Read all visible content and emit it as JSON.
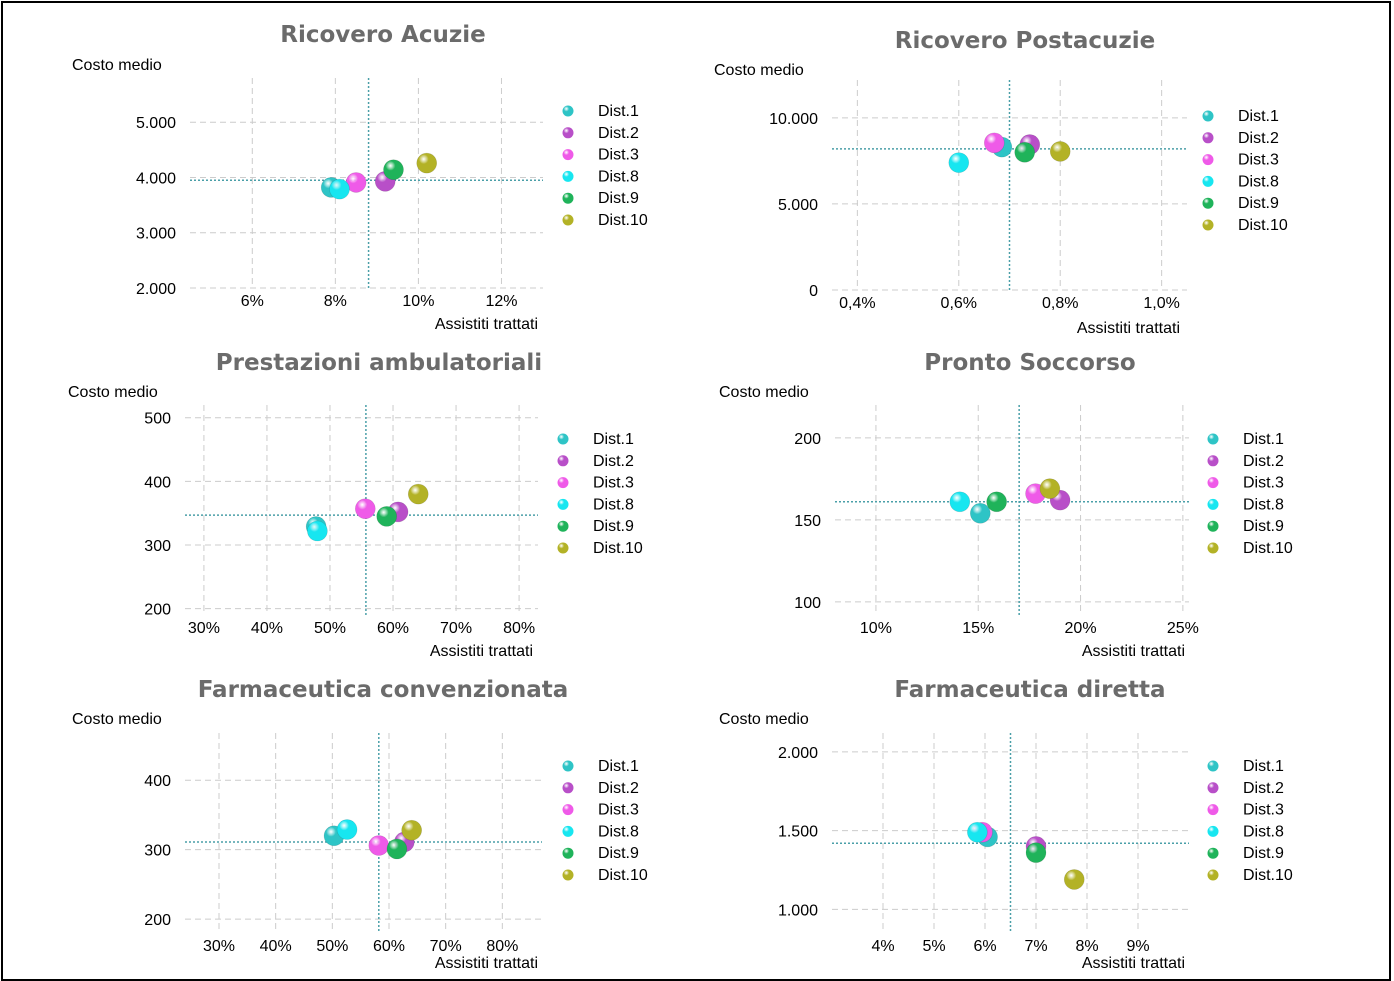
{
  "colors": {
    "Dist.1": "#2ec4c6",
    "Dist.2": "#b84fc8",
    "Dist.3": "#ef5ae8",
    "Dist.8": "#17e6f0",
    "Dist.9": "#1fb35a",
    "Dist.10": "#b3b226",
    "grid": "#cccccc",
    "ref": "#4a9fa8"
  },
  "chart_data": [
    {
      "type": "scatter",
      "title": "Ricovero Acuzie",
      "xlabel": "Assistiti trattati",
      "ylabel": "Costo medio",
      "xlim": [
        4.5,
        13.0
      ],
      "ylim": [
        2000,
        5800
      ],
      "xticks": [
        6,
        8,
        10,
        12
      ],
      "xtick_labels": [
        "6%",
        "8%",
        "10%",
        "12%"
      ],
      "yticks": [
        2000,
        3000,
        4000,
        5000
      ],
      "ytick_labels": [
        "2.000",
        "3.000",
        "4.000",
        "5.000"
      ],
      "ref_x": 8.8,
      "ref_y": 3950,
      "grid": true,
      "legend": "right",
      "points": [
        {
          "name": "Dist.1",
          "x": 7.9,
          "y": 3820
        },
        {
          "name": "Dist.2",
          "x": 9.2,
          "y": 3930
        },
        {
          "name": "Dist.3",
          "x": 8.5,
          "y": 3910
        },
        {
          "name": "Dist.8",
          "x": 8.1,
          "y": 3790
        },
        {
          "name": "Dist.9",
          "x": 9.4,
          "y": 4140
        },
        {
          "name": "Dist.10",
          "x": 10.2,
          "y": 4260
        }
      ]
    },
    {
      "type": "scatter",
      "title": "Ricovero Postacuzie",
      "xlabel": "Assistiti trattati",
      "ylabel": "Costo medio",
      "xlim": [
        0.35,
        1.05
      ],
      "ylim": [
        0,
        12200
      ],
      "xticks": [
        0.4,
        0.6,
        0.8,
        1.0
      ],
      "xtick_labels": [
        "0,4%",
        "0,6%",
        "0,8%",
        "1,0%"
      ],
      "yticks": [
        0,
        5000,
        10000
      ],
      "ytick_labels": [
        "0",
        "5.000",
        "10.000"
      ],
      "ref_x": 0.7,
      "ref_y": 8200,
      "grid": true,
      "legend": "right",
      "points": [
        {
          "name": "Dist.1",
          "x": 0.685,
          "y": 8300
        },
        {
          "name": "Dist.2",
          "x": 0.74,
          "y": 8450
        },
        {
          "name": "Dist.3",
          "x": 0.67,
          "y": 8550
        },
        {
          "name": "Dist.8",
          "x": 0.6,
          "y": 7400
        },
        {
          "name": "Dist.9",
          "x": 0.73,
          "y": 8000
        },
        {
          "name": "Dist.10",
          "x": 0.8,
          "y": 8050
        }
      ]
    },
    {
      "type": "scatter",
      "title": "Prestazioni ambulatoriali",
      "xlabel": "Assistiti trattati",
      "ylabel": "Costo medio",
      "xlim": [
        27,
        83
      ],
      "ylim": [
        190,
        520
      ],
      "xticks": [
        30,
        40,
        50,
        60,
        70,
        80
      ],
      "xtick_labels": [
        "30%",
        "40%",
        "50%",
        "60%",
        "70%",
        "80%"
      ],
      "yticks": [
        200,
        300,
        400,
        500
      ],
      "ytick_labels": [
        "200",
        "300",
        "400",
        "500"
      ],
      "ref_x": 55.7,
      "ref_y": 347,
      "grid": true,
      "legend": "right",
      "points": [
        {
          "name": "Dist.1",
          "x": 47.8,
          "y": 329
        },
        {
          "name": "Dist.2",
          "x": 60.8,
          "y": 352
        },
        {
          "name": "Dist.3",
          "x": 55.6,
          "y": 357
        },
        {
          "name": "Dist.8",
          "x": 48.0,
          "y": 322
        },
        {
          "name": "Dist.9",
          "x": 59.0,
          "y": 345
        },
        {
          "name": "Dist.10",
          "x": 64.0,
          "y": 380
        }
      ]
    },
    {
      "type": "scatter",
      "title": "Pronto Soccorso",
      "xlabel": "Assistiti trattati",
      "ylabel": "Costo medio",
      "xlim": [
        8,
        25.3
      ],
      "ylim": [
        92,
        220
      ],
      "xticks": [
        10,
        15,
        20,
        25
      ],
      "xtick_labels": [
        "10%",
        "15%",
        "20%",
        "25%"
      ],
      "yticks": [
        100,
        150,
        200
      ],
      "ytick_labels": [
        "100",
        "150",
        "200"
      ],
      "ref_x": 17.0,
      "ref_y": 161,
      "grid": true,
      "legend": "right",
      "points": [
        {
          "name": "Dist.1",
          "x": 15.1,
          "y": 154
        },
        {
          "name": "Dist.2",
          "x": 19.0,
          "y": 162
        },
        {
          "name": "Dist.3",
          "x": 17.8,
          "y": 166
        },
        {
          "name": "Dist.8",
          "x": 14.1,
          "y": 161
        },
        {
          "name": "Dist.9",
          "x": 15.9,
          "y": 161
        },
        {
          "name": "Dist.10",
          "x": 18.5,
          "y": 169
        }
      ]
    },
    {
      "type": "scatter",
      "title": "Farmaceutica convenzionata",
      "xlabel": "Assistiti trattati",
      "ylabel": "Costo medio",
      "xlim": [
        24,
        87
      ],
      "ylim": [
        180,
        468
      ],
      "xticks": [
        30,
        40,
        50,
        60,
        70,
        80
      ],
      "xtick_labels": [
        "30%",
        "40%",
        "50%",
        "60%",
        "70%",
        "80%"
      ],
      "yticks": [
        200,
        300,
        400
      ],
      "ytick_labels": [
        "200",
        "300",
        "400"
      ],
      "ref_x": 58.2,
      "ref_y": 311,
      "grid": true,
      "legend": "right",
      "points": [
        {
          "name": "Dist.1",
          "x": 50.3,
          "y": 320
        },
        {
          "name": "Dist.2",
          "x": 62.7,
          "y": 311
        },
        {
          "name": "Dist.3",
          "x": 58.2,
          "y": 306
        },
        {
          "name": "Dist.8",
          "x": 52.6,
          "y": 329
        },
        {
          "name": "Dist.9",
          "x": 61.4,
          "y": 301
        },
        {
          "name": "Dist.10",
          "x": 64.0,
          "y": 328
        }
      ]
    },
    {
      "type": "scatter",
      "title": "Farmaceutica diretta",
      "xlabel": "Assistiti trattati",
      "ylabel": "Costo medio",
      "xlim": [
        3.0,
        10.0
      ],
      "ylim": [
        850,
        2120
      ],
      "xticks": [
        4,
        5,
        6,
        7,
        8,
        9
      ],
      "xtick_labels": [
        "4%",
        "5%",
        "6%",
        "7%",
        "8%",
        "9%"
      ],
      "yticks": [
        1000,
        1500,
        2000
      ],
      "ytick_labels": [
        "1.000",
        "1.500",
        "2.000"
      ],
      "ref_x": 6.5,
      "ref_y": 1420,
      "grid": true,
      "legend": "right",
      "points": [
        {
          "name": "Dist.1",
          "x": 6.05,
          "y": 1460
        },
        {
          "name": "Dist.2",
          "x": 7.0,
          "y": 1400
        },
        {
          "name": "Dist.3",
          "x": 5.95,
          "y": 1490
        },
        {
          "name": "Dist.8",
          "x": 5.85,
          "y": 1490
        },
        {
          "name": "Dist.9",
          "x": 7.0,
          "y": 1360
        },
        {
          "name": "Dist.10",
          "x": 7.75,
          "y": 1190
        }
      ]
    }
  ]
}
